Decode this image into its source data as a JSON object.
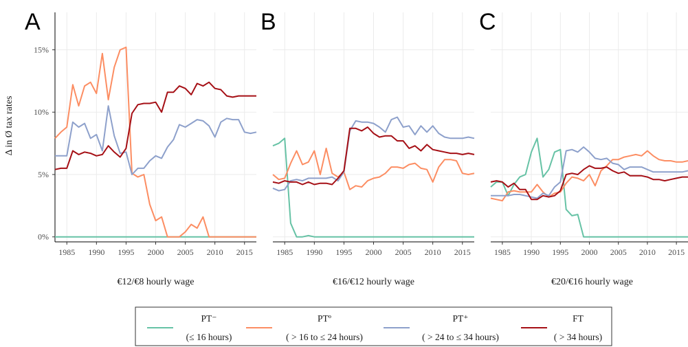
{
  "chart_data": {
    "type": "line",
    "ylabel": "Δ in Ø tax rates",
    "y_ticks": [
      "0%",
      "5%",
      "10%",
      "15%"
    ],
    "ylim": [
      -0.4,
      18
    ],
    "xlim": [
      1983,
      2017
    ],
    "x_ticks": [
      "1985",
      "1990",
      "1995",
      "2000",
      "2005",
      "2010",
      "2015"
    ],
    "grid": true,
    "legend_placement": "bottom",
    "series_meta": [
      {
        "key": "pt_minus",
        "name": "PT⁻",
        "sub": "(≤ 16 hours)",
        "color": "#66c2a5"
      },
      {
        "key": "pt_o",
        "name": "PTº",
        "sub": "( > 16 to ≤ 24 hours)",
        "color": "#fc8d62"
      },
      {
        "key": "pt_plus",
        "name": "PT⁺",
        "sub": "( > 24 to ≤ 34 hours)",
        "color": "#8da0cb"
      },
      {
        "key": "ft",
        "name": "FT",
        "sub": "( > 34 hours)",
        "color": "#a50f15"
      }
    ],
    "panels": [
      {
        "letter": "A",
        "xlabel": "€12/€8 hourly wage",
        "x": [
          1983,
          1984,
          1985,
          1986,
          1987,
          1988,
          1989,
          1990,
          1991,
          1992,
          1993,
          1994,
          1995,
          1996,
          1997,
          1998,
          1999,
          2000,
          2001,
          2002,
          2003,
          2004,
          2005,
          2006,
          2007,
          2008,
          2009,
          2010,
          2011,
          2012,
          2013,
          2014,
          2015,
          2016,
          2017
        ],
        "series": {
          "pt_minus": [
            0,
            0,
            0,
            0,
            0,
            0,
            0,
            0,
            0,
            0,
            0,
            0,
            0,
            0,
            0,
            0,
            0,
            0,
            0,
            0,
            0,
            0,
            0,
            0,
            0,
            0,
            0,
            0,
            0,
            0,
            0,
            0,
            0,
            0,
            0
          ],
          "pt_o": [
            7.9,
            8.4,
            8.8,
            12.2,
            10.5,
            12.1,
            12.4,
            11.5,
            14.7,
            11.0,
            13.6,
            15.0,
            15.2,
            5.1,
            4.8,
            5.0,
            2.6,
            1.3,
            1.6,
            0,
            0,
            0,
            0.4,
            1.0,
            0.7,
            1.6,
            0,
            0,
            0,
            0,
            0,
            0,
            0,
            0,
            0
          ],
          "pt_plus": [
            6.5,
            6.5,
            6.5,
            9.2,
            8.8,
            9.1,
            7.9,
            8.2,
            6.9,
            10.5,
            8.1,
            6.7,
            6.8,
            5.0,
            5.5,
            5.5,
            6.1,
            6.5,
            6.3,
            7.2,
            7.8,
            9.0,
            8.8,
            9.1,
            9.4,
            9.3,
            8.9,
            8.0,
            9.2,
            9.5,
            9.4,
            9.4,
            8.4,
            8.3,
            8.4
          ],
          "ft": [
            5.4,
            5.5,
            5.5,
            6.9,
            6.6,
            6.8,
            6.7,
            6.5,
            6.6,
            7.3,
            6.8,
            6.4,
            7.1,
            9.9,
            10.6,
            10.7,
            10.7,
            10.8,
            10.0,
            11.6,
            11.6,
            12.1,
            11.9,
            11.4,
            12.3,
            12.1,
            12.4,
            11.9,
            11.8,
            11.3,
            11.2,
            11.3,
            11.3,
            11.3,
            11.3
          ]
        }
      },
      {
        "letter": "B",
        "xlabel": "€16/€12 hourly wage",
        "x": [
          1983,
          1984,
          1985,
          1986,
          1987,
          1988,
          1989,
          1990,
          1991,
          1992,
          1993,
          1994,
          1995,
          1996,
          1997,
          1998,
          1999,
          2000,
          2001,
          2002,
          2003,
          2004,
          2005,
          2006,
          2007,
          2008,
          2009,
          2010,
          2011,
          2012,
          2013,
          2014,
          2015,
          2016,
          2017
        ],
        "series": {
          "pt_minus": [
            7.3,
            7.5,
            7.9,
            1.1,
            0,
            0,
            0.1,
            0,
            0,
            0,
            0,
            0,
            0,
            0,
            0,
            0,
            0,
            0,
            0,
            0,
            0,
            0,
            0,
            0,
            0,
            0,
            0,
            0,
            0,
            0,
            0,
            0,
            0,
            0,
            0
          ],
          "pt_o": [
            5.0,
            4.6,
            4.7,
            5.9,
            6.9,
            5.8,
            6.0,
            6.9,
            5.0,
            7.1,
            5.1,
            4.8,
            5.2,
            3.8,
            4.1,
            4.0,
            4.5,
            4.7,
            4.8,
            5.1,
            5.6,
            5.6,
            5.5,
            5.8,
            5.9,
            5.5,
            5.4,
            4.4,
            5.6,
            6.2,
            6.2,
            6.1,
            5.1,
            5.0,
            5.1
          ],
          "pt_plus": [
            3.9,
            3.7,
            3.8,
            4.5,
            4.6,
            4.5,
            4.7,
            4.7,
            4.7,
            4.7,
            4.8,
            4.5,
            5.2,
            8.5,
            9.3,
            9.2,
            9.2,
            9.1,
            8.8,
            8.4,
            9.4,
            9.6,
            8.8,
            8.9,
            8.2,
            8.9,
            8.4,
            8.9,
            8.3,
            8.0,
            7.9,
            7.9,
            7.9,
            8.0,
            7.9
          ],
          "ft": [
            4.4,
            4.3,
            4.5,
            4.4,
            4.4,
            4.2,
            4.4,
            4.2,
            4.3,
            4.3,
            4.2,
            4.7,
            5.3,
            8.7,
            8.7,
            8.5,
            8.8,
            8.3,
            8.0,
            8.1,
            8.1,
            7.7,
            7.7,
            7.1,
            7.3,
            6.9,
            7.4,
            7.0,
            6.9,
            6.8,
            6.7,
            6.7,
            6.6,
            6.7,
            6.6
          ]
        }
      },
      {
        "letter": "C",
        "xlabel": "€20/€16 hourly wage",
        "x": [
          1983,
          1984,
          1985,
          1986,
          1987,
          1988,
          1989,
          1990,
          1991,
          1992,
          1993,
          1994,
          1995,
          1996,
          1997,
          1998,
          1999,
          2000,
          2001,
          2002,
          2003,
          2004,
          2005,
          2006,
          2007,
          2008,
          2009,
          2010,
          2011,
          2012,
          2013,
          2014,
          2015,
          2016,
          2017
        ],
        "series": {
          "pt_minus": [
            4.0,
            4.4,
            4.4,
            3.3,
            4.2,
            4.8,
            5.0,
            6.8,
            7.9,
            4.8,
            5.4,
            6.8,
            7.0,
            2.2,
            1.7,
            1.8,
            0,
            0,
            0,
            0,
            0,
            0,
            0,
            0,
            0,
            0,
            0,
            0,
            0,
            0,
            0,
            0,
            0,
            0,
            0
          ],
          "pt_o": [
            3.1,
            3.0,
            2.9,
            3.6,
            3.7,
            3.6,
            3.6,
            3.6,
            4.2,
            3.6,
            3.2,
            3.5,
            3.6,
            4.3,
            4.8,
            4.7,
            4.5,
            5.0,
            4.1,
            5.3,
            5.7,
            6.2,
            6.2,
            6.4,
            6.5,
            6.6,
            6.5,
            6.9,
            6.5,
            6.2,
            6.1,
            6.1,
            6.0,
            6.0,
            6.1
          ],
          "pt_plus": [
            3.3,
            3.3,
            3.3,
            3.3,
            3.4,
            3.4,
            3.3,
            3.2,
            3.1,
            3.5,
            3.3,
            4.0,
            4.4,
            6.9,
            7.0,
            6.8,
            7.2,
            6.8,
            6.3,
            6.2,
            6.3,
            5.9,
            5.8,
            5.4,
            5.6,
            5.6,
            5.6,
            5.4,
            5.2,
            5.2,
            5.2,
            5.2,
            5.2,
            5.2,
            5.3
          ],
          "ft": [
            4.4,
            4.5,
            4.4,
            4.0,
            4.3,
            3.8,
            3.8,
            3.0,
            3.0,
            3.3,
            3.2,
            3.3,
            3.7,
            5.0,
            5.1,
            5.0,
            5.4,
            5.7,
            5.5,
            5.5,
            5.6,
            5.3,
            5.1,
            5.2,
            4.9,
            4.9,
            4.9,
            4.8,
            4.6,
            4.6,
            4.5,
            4.6,
            4.7,
            4.8,
            4.8
          ]
        }
      }
    ]
  }
}
